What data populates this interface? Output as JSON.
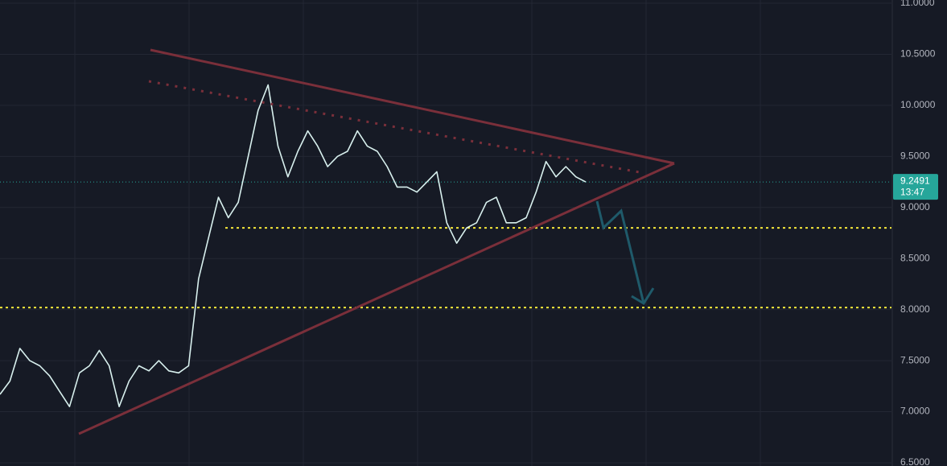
{
  "chart_data": {
    "type": "line",
    "values": [
      7.17,
      7.3,
      7.62,
      7.5,
      7.45,
      7.35,
      7.2,
      7.05,
      7.38,
      7.45,
      7.6,
      7.45,
      7.05,
      7.3,
      7.45,
      7.4,
      7.5,
      7.4,
      7.38,
      7.45,
      8.3,
      8.7,
      9.1,
      8.9,
      9.05,
      9.5,
      9.95,
      10.2,
      9.6,
      9.3,
      9.55,
      9.75,
      9.6,
      9.4,
      9.5,
      9.55,
      9.75,
      9.6,
      9.55,
      9.4,
      9.2,
      9.2,
      9.15,
      9.25,
      9.35,
      8.85,
      8.65,
      8.8,
      8.85,
      9.05,
      9.1,
      8.85,
      8.85,
      8.9,
      9.15,
      9.45,
      9.3,
      9.4,
      9.3,
      9.25
    ],
    "color": "#d8f0ee",
    "ylim": [
      6.5,
      11.0
    ],
    "yticks": [
      {
        "value": 6.5,
        "label": "6.5000"
      },
      {
        "value": 7.0,
        "label": "7.0000"
      },
      {
        "value": 7.5,
        "label": "7.5000"
      },
      {
        "value": 8.0,
        "label": "8.0000"
      },
      {
        "value": 8.5,
        "label": "8.5000"
      },
      {
        "value": 9.0,
        "label": "9.0000"
      },
      {
        "value": 9.5,
        "label": "9.5000"
      },
      {
        "value": 10.0,
        "label": "10.0000"
      },
      {
        "value": 10.5,
        "label": "10.5000"
      },
      {
        "value": 11.0,
        "label": "11.0000"
      }
    ],
    "grid": true,
    "last_price": 9.2491,
    "countdown": "13:47",
    "levels": [
      8.8,
      8.02
    ],
    "level_color": "#f5e83a"
  }
}
